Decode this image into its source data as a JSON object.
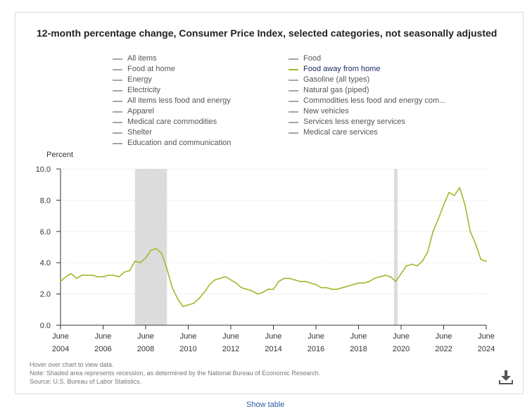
{
  "title": "12-month percentage change, Consumer Price Index, selected categories, not seasonally adjusted",
  "legend": {
    "col1": [
      "All items",
      "Food at home",
      "Energy",
      "Electricity",
      "All items less food and energy",
      "Apparel",
      "Medical care commodities",
      "Shelter",
      "Education and communication"
    ],
    "col2": [
      "Food",
      "Food away from home",
      "Gasoline (all types)",
      "Natural gas (piped)",
      "Commodities less food and energy com...",
      "New vehicles",
      "Services less energy services",
      "Medical care services"
    ],
    "active": "Food away from home"
  },
  "y_axis_title": "Percent",
  "notes": [
    "Hover over chart to view data.",
    "Note: Shaded area represents recession, as determined by the National Bureau of Economic Research.",
    "Source: U.S. Bureau of Labor Statistics."
  ],
  "bottom_link": "Show table",
  "icons": {
    "download": "download-icon"
  },
  "colors": {
    "series": "#9bbb2b",
    "recession": "#dcdcdc",
    "legend_inactive": "#a6a6a6"
  },
  "chart_data": {
    "type": "line",
    "ylabel": "Percent",
    "ylim": [
      0,
      10
    ],
    "yticks": [
      "0.0",
      "2.0",
      "4.0",
      "6.0",
      "8.0",
      "10.0"
    ],
    "xlim": [
      "2004-06",
      "2024-06"
    ],
    "xticks": [
      {
        "month": "June",
        "year": "2004"
      },
      {
        "month": "June",
        "year": "2006"
      },
      {
        "month": "June",
        "year": "2008"
      },
      {
        "month": "June",
        "year": "2010"
      },
      {
        "month": "June",
        "year": "2012"
      },
      {
        "month": "June",
        "year": "2014"
      },
      {
        "month": "June",
        "year": "2016"
      },
      {
        "month": "June",
        "year": "2018"
      },
      {
        "month": "June",
        "year": "2020"
      },
      {
        "month": "June",
        "year": "2022"
      },
      {
        "month": "June",
        "year": "2024"
      }
    ],
    "grid": true,
    "recessions": [
      [
        "2007-12",
        "2009-06"
      ],
      [
        "2020-02",
        "2020-04"
      ]
    ],
    "series": [
      {
        "name": "Food away from home",
        "points": [
          [
            "2004-06",
            2.8
          ],
          [
            "2004-09",
            3.1
          ],
          [
            "2004-12",
            3.3
          ],
          [
            "2005-03",
            3.0
          ],
          [
            "2005-06",
            3.2
          ],
          [
            "2005-09",
            3.2
          ],
          [
            "2005-12",
            3.2
          ],
          [
            "2006-03",
            3.1
          ],
          [
            "2006-06",
            3.1
          ],
          [
            "2006-09",
            3.2
          ],
          [
            "2006-12",
            3.2
          ],
          [
            "2007-03",
            3.1
          ],
          [
            "2007-06",
            3.4
          ],
          [
            "2007-09",
            3.5
          ],
          [
            "2007-12",
            4.1
          ],
          [
            "2008-03",
            4.0
          ],
          [
            "2008-06",
            4.3
          ],
          [
            "2008-09",
            4.8
          ],
          [
            "2008-12",
            4.9
          ],
          [
            "2009-03",
            4.6
          ],
          [
            "2009-06",
            3.6
          ],
          [
            "2009-09",
            2.4
          ],
          [
            "2009-12",
            1.7
          ],
          [
            "2010-03",
            1.2
          ],
          [
            "2010-06",
            1.3
          ],
          [
            "2010-09",
            1.4
          ],
          [
            "2010-12",
            1.7
          ],
          [
            "2011-03",
            2.1
          ],
          [
            "2011-06",
            2.6
          ],
          [
            "2011-09",
            2.9
          ],
          [
            "2011-12",
            3.0
          ],
          [
            "2012-03",
            3.1
          ],
          [
            "2012-06",
            2.9
          ],
          [
            "2012-09",
            2.7
          ],
          [
            "2012-12",
            2.4
          ],
          [
            "2013-03",
            2.3
          ],
          [
            "2013-06",
            2.2
          ],
          [
            "2013-09",
            2.0
          ],
          [
            "2013-12",
            2.1
          ],
          [
            "2014-03",
            2.3
          ],
          [
            "2014-06",
            2.3
          ],
          [
            "2014-09",
            2.8
          ],
          [
            "2014-12",
            3.0
          ],
          [
            "2015-03",
            3.0
          ],
          [
            "2015-06",
            2.9
          ],
          [
            "2015-09",
            2.8
          ],
          [
            "2015-12",
            2.8
          ],
          [
            "2016-03",
            2.7
          ],
          [
            "2016-06",
            2.6
          ],
          [
            "2016-09",
            2.4
          ],
          [
            "2016-12",
            2.4
          ],
          [
            "2017-03",
            2.3
          ],
          [
            "2017-06",
            2.3
          ],
          [
            "2017-09",
            2.4
          ],
          [
            "2017-12",
            2.5
          ],
          [
            "2018-03",
            2.6
          ],
          [
            "2018-06",
            2.7
          ],
          [
            "2018-09",
            2.7
          ],
          [
            "2018-12",
            2.8
          ],
          [
            "2019-03",
            3.0
          ],
          [
            "2019-06",
            3.1
          ],
          [
            "2019-09",
            3.2
          ],
          [
            "2019-12",
            3.1
          ],
          [
            "2020-03",
            2.8
          ],
          [
            "2020-06",
            3.3
          ],
          [
            "2020-09",
            3.8
          ],
          [
            "2020-12",
            3.9
          ],
          [
            "2021-03",
            3.8
          ],
          [
            "2021-06",
            4.1
          ],
          [
            "2021-09",
            4.7
          ],
          [
            "2021-12",
            6.0
          ],
          [
            "2022-03",
            6.8
          ],
          [
            "2022-06",
            7.7
          ],
          [
            "2022-09",
            8.5
          ],
          [
            "2022-12",
            8.3
          ],
          [
            "2023-03",
            8.8
          ],
          [
            "2023-06",
            7.7
          ],
          [
            "2023-09",
            6.0
          ],
          [
            "2023-12",
            5.2
          ],
          [
            "2024-03",
            4.2
          ],
          [
            "2024-06",
            4.1
          ]
        ]
      }
    ]
  }
}
